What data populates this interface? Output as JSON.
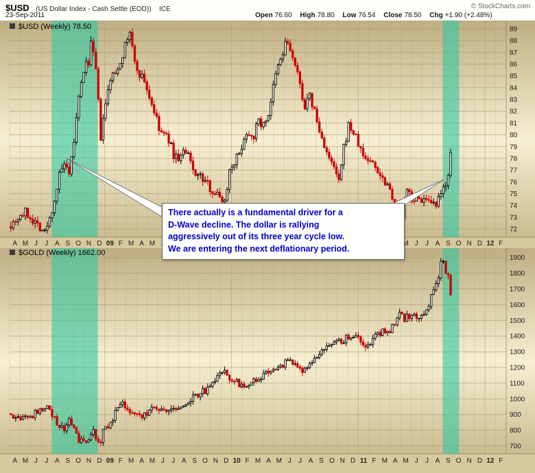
{
  "header": {
    "symbol": "$USD",
    "description": "(US Dollar Index - Cash Settle (EOD))",
    "exchange": "ICE",
    "date": "23-Sep-2011",
    "copyright": "© StockCharts.com",
    "quote": {
      "open_label": "Open",
      "open_value": "76.60",
      "high_label": "High",
      "high_value": "78.80",
      "low_label": "Low",
      "low_value": "76.54",
      "close_label": "Close",
      "close_value": "78.50",
      "chg_label": "Chg",
      "chg_value": "+1.90 (+2.48%)"
    }
  },
  "annotation": {
    "text_color": "#0000cc",
    "lines": [
      "There actually is a fundamental driver for a",
      "D-Wave decline. The dollar is rallying",
      "aggressively out of its three year cycle low.",
      "We are entering the next deflationary period."
    ]
  },
  "xaxis": {
    "start": "Apr-2008",
    "months_total": 47,
    "labels": [
      "A",
      "M",
      "J",
      "J",
      "A",
      "S",
      "O",
      "N",
      "D",
      "09",
      "F",
      "M",
      "A",
      "M",
      "J",
      "J",
      "A",
      "S",
      "O",
      "N",
      "D",
      "10",
      "F",
      "M",
      "A",
      "M",
      "J",
      "J",
      "A",
      "S",
      "O",
      "N",
      "D",
      "11",
      "F",
      "M",
      "A",
      "M",
      "J",
      "J",
      "A",
      "S",
      "O",
      "N",
      "D",
      "12",
      "F"
    ],
    "year_label_indices": [
      9,
      21,
      33,
      45
    ]
  },
  "highlights": {
    "color": "#2fc8a1",
    "opacity": 0.6,
    "bands_month_range": [
      [
        4.0,
        8.35
      ],
      [
        41.0,
        42.55
      ]
    ]
  },
  "chart_data": [
    {
      "type": "candlestick",
      "timeframe": "weekly",
      "symbol": "$USD",
      "title": "$USD (Weekly) 78.50",
      "last_close": 78.5,
      "ylim": [
        71.3,
        89.7
      ],
      "yticks": [
        72,
        73,
        74,
        75,
        76,
        77,
        78,
        79,
        80,
        81,
        82,
        83,
        84,
        85,
        86,
        87,
        88,
        89
      ],
      "up_color": "#000000",
      "down_color": "#cc0000",
      "weeks_total": 182,
      "volatility": 0.38,
      "seed": 7,
      "anchors_week_price": [
        [
          0,
          72.4
        ],
        [
          3,
          73.0
        ],
        [
          6,
          73.4
        ],
        [
          9,
          72.8
        ],
        [
          12,
          72.2
        ],
        [
          14,
          71.7
        ],
        [
          16,
          72.8
        ],
        [
          18,
          74.5
        ],
        [
          20,
          76.5
        ],
        [
          22,
          77.5
        ],
        [
          24,
          76.3
        ],
        [
          26,
          79.5
        ],
        [
          28,
          83.0
        ],
        [
          30,
          85.5
        ],
        [
          32,
          86.3
        ],
        [
          33,
          87.8
        ],
        [
          35,
          85.5
        ],
        [
          37,
          79.8
        ],
        [
          39,
          82.5
        ],
        [
          41,
          84.8
        ],
        [
          43,
          85.2
        ],
        [
          45,
          86.3
        ],
        [
          47,
          87.5
        ],
        [
          49,
          88.8
        ],
        [
          51,
          86.0
        ],
        [
          53,
          85.2
        ],
        [
          55,
          84.6
        ],
        [
          57,
          83.2
        ],
        [
          59,
          82.0
        ],
        [
          61,
          80.4
        ],
        [
          63,
          80.0
        ],
        [
          65,
          79.6
        ],
        [
          67,
          78.3
        ],
        [
          69,
          78.0
        ],
        [
          71,
          78.5
        ],
        [
          73,
          78.2
        ],
        [
          75,
          77.0
        ],
        [
          77,
          76.6
        ],
        [
          79,
          76.2
        ],
        [
          81,
          75.8
        ],
        [
          83,
          75.3
        ],
        [
          85,
          74.9
        ],
        [
          87,
          74.6
        ],
        [
          88,
          74.3
        ],
        [
          90,
          77.0
        ],
        [
          92,
          77.8
        ],
        [
          94,
          78.3
        ],
        [
          96,
          79.8
        ],
        [
          98,
          80.2
        ],
        [
          100,
          80.0
        ],
        [
          102,
          81.2
        ],
        [
          104,
          80.8
        ],
        [
          106,
          81.8
        ],
        [
          108,
          84.0
        ],
        [
          110,
          85.8
        ],
        [
          112,
          86.8
        ],
        [
          113,
          88.0
        ],
        [
          115,
          87.2
        ],
        [
          117,
          85.8
        ],
        [
          119,
          84.2
        ],
        [
          121,
          82.4
        ],
        [
          123,
          83.2
        ],
        [
          125,
          82.0
        ],
        [
          127,
          80.2
        ],
        [
          129,
          79.2
        ],
        [
          131,
          77.8
        ],
        [
          133,
          77.2
        ],
        [
          135,
          75.9
        ],
        [
          137,
          78.8
        ],
        [
          139,
          80.8
        ],
        [
          141,
          80.2
        ],
        [
          143,
          79.2
        ],
        [
          145,
          78.2
        ],
        [
          147,
          77.9
        ],
        [
          149,
          77.6
        ],
        [
          151,
          77.0
        ],
        [
          153,
          76.3
        ],
        [
          155,
          75.9
        ],
        [
          157,
          74.9
        ],
        [
          159,
          73.6
        ],
        [
          161,
          73.0
        ],
        [
          163,
          75.2
        ],
        [
          165,
          74.7
        ],
        [
          167,
          74.4
        ],
        [
          169,
          74.6
        ],
        [
          171,
          74.3
        ],
        [
          173,
          73.9
        ],
        [
          175,
          74.0
        ],
        [
          177,
          74.8
        ],
        [
          178,
          75.4
        ],
        [
          179,
          76.0
        ],
        [
          180,
          76.8
        ],
        [
          181,
          78.5
        ]
      ]
    },
    {
      "type": "candlestick",
      "timeframe": "weekly",
      "symbol": "$GOLD",
      "title": "$GOLD (Weekly) 1662.00",
      "last_close": 1662,
      "ylim": [
        650,
        1960
      ],
      "yticks": [
        700,
        800,
        900,
        1000,
        1100,
        1200,
        1300,
        1400,
        1500,
        1600,
        1700,
        1800,
        1900
      ],
      "up_color": "#000000",
      "down_color": "#cc0000",
      "weeks_total": 182,
      "volatility": 22,
      "seed": 13,
      "anchors_week_price": [
        [
          0,
          905
        ],
        [
          3,
          880
        ],
        [
          6,
          885
        ],
        [
          9,
          900
        ],
        [
          12,
          930
        ],
        [
          14,
          955
        ],
        [
          16,
          920
        ],
        [
          18,
          875
        ],
        [
          20,
          830
        ],
        [
          22,
          800
        ],
        [
          24,
          855
        ],
        [
          26,
          810
        ],
        [
          28,
          740
        ],
        [
          30,
          715
        ],
        [
          32,
          745
        ],
        [
          34,
          790
        ],
        [
          36,
          740
        ],
        [
          37,
          705
        ],
        [
          38,
          790
        ],
        [
          40,
          835
        ],
        [
          42,
          880
        ],
        [
          44,
          930
        ],
        [
          46,
          980
        ],
        [
          48,
          935
        ],
        [
          50,
          920
        ],
        [
          52,
          885
        ],
        [
          54,
          895
        ],
        [
          56,
          915
        ],
        [
          58,
          935
        ],
        [
          60,
          950
        ],
        [
          62,
          935
        ],
        [
          64,
          930
        ],
        [
          66,
          938
        ],
        [
          68,
          952
        ],
        [
          70,
          945
        ],
        [
          72,
          955
        ],
        [
          74,
          995
        ],
        [
          76,
          1015
        ],
        [
          78,
          1045
        ],
        [
          80,
          1050
        ],
        [
          82,
          1065
        ],
        [
          84,
          1125
        ],
        [
          86,
          1170
        ],
        [
          88,
          1200
        ],
        [
          90,
          1105
        ],
        [
          92,
          1120
        ],
        [
          94,
          1085
        ],
        [
          96,
          1065
        ],
        [
          98,
          1105
        ],
        [
          100,
          1110
        ],
        [
          102,
          1125
        ],
        [
          104,
          1145
        ],
        [
          106,
          1165
        ],
        [
          108,
          1185
        ],
        [
          110,
          1205
        ],
        [
          112,
          1220
        ],
        [
          114,
          1235
        ],
        [
          116,
          1240
        ],
        [
          118,
          1205
        ],
        [
          120,
          1190
        ],
        [
          122,
          1215
        ],
        [
          124,
          1235
        ],
        [
          126,
          1255
        ],
        [
          128,
          1295
        ],
        [
          130,
          1325
        ],
        [
          132,
          1345
        ],
        [
          134,
          1355
        ],
        [
          136,
          1365
        ],
        [
          138,
          1385
        ],
        [
          140,
          1395
        ],
        [
          142,
          1405
        ],
        [
          144,
          1375
        ],
        [
          146,
          1340
        ],
        [
          148,
          1365
        ],
        [
          150,
          1405
        ],
        [
          152,
          1425
        ],
        [
          154,
          1435
        ],
        [
          156,
          1425
        ],
        [
          158,
          1485
        ],
        [
          160,
          1540
        ],
        [
          162,
          1510
        ],
        [
          164,
          1530
        ],
        [
          166,
          1545
        ],
        [
          168,
          1505
        ],
        [
          170,
          1535
        ],
        [
          172,
          1605
        ],
        [
          174,
          1690
        ],
        [
          176,
          1790
        ],
        [
          177,
          1860
        ],
        [
          178,
          1895
        ],
        [
          179,
          1810
        ],
        [
          180,
          1785
        ],
        [
          181,
          1662
        ]
      ]
    }
  ]
}
